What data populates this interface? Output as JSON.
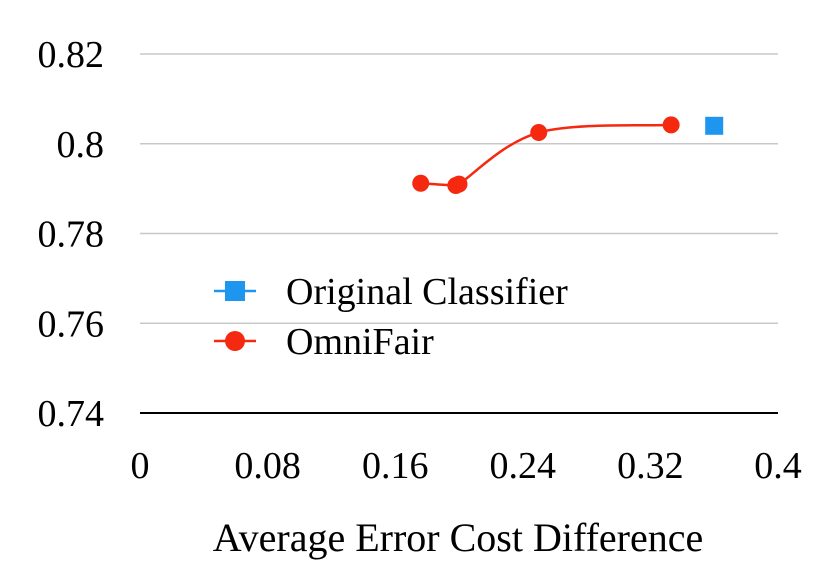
{
  "chart_data": {
    "type": "scatter",
    "title": "",
    "xlabel": "Average Error Cost Difference",
    "ylabel": "",
    "xlim": [
      0,
      0.4
    ],
    "ylim": [
      0.74,
      0.82
    ],
    "x_ticks": [
      "0",
      "0.08",
      "0.16",
      "0.24",
      "0.32",
      "0.4"
    ],
    "y_ticks": [
      "0.74",
      "0.76",
      "0.78",
      "0.8",
      "0.82"
    ],
    "grid": "horizontal",
    "legend_position": "center-left",
    "series": [
      {
        "name": "Original Classifier",
        "marker": "square",
        "line": false,
        "color": "#1e96f0",
        "points": [
          [
            0.36,
            0.804
          ]
        ]
      },
      {
        "name": "OmniFair",
        "marker": "circle",
        "line": true,
        "color": "#f5290f",
        "points": [
          [
            0.176,
            0.7912
          ],
          [
            0.198,
            0.7907
          ],
          [
            0.2,
            0.791
          ],
          [
            0.25,
            0.8025
          ],
          [
            0.333,
            0.8042
          ]
        ]
      }
    ]
  }
}
